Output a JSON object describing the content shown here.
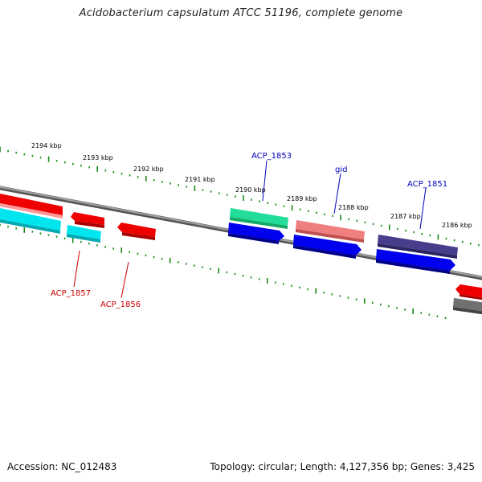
{
  "title": "Acidobacterium capsulatum ATCC 51196, complete genome",
  "footer": {
    "accession": "Accession: NC_012483",
    "summary": "Topology: circular; Length: 4,127,356 bp; Genes: 3,425"
  },
  "kbp_labels": [
    "2194 kbp",
    "2193 kbp",
    "2192 kbp",
    "2191 kbp",
    "2190 kbp",
    "2189 kbp",
    "2188 kbp",
    "2187 kbp",
    "2186 kbp"
  ],
  "gene_labels": {
    "acp_1853": "ACP_1853",
    "gid": "gid",
    "acp_1851": "ACP_1851",
    "acp_1857": "ACP_1857",
    "acp_1856": "ACP_1856"
  },
  "colors": {
    "backbone": "#7a7a7a",
    "tick": "#1a8a1a",
    "label_blue": "#0000bb",
    "label_red": "#cc0000",
    "red": "#ee0000",
    "cyan": "#00e5ee",
    "blue": "#0000ee",
    "green": "#22dd99",
    "pink": "#f08080",
    "navy": "#483d8b",
    "gray": "#707070"
  }
}
